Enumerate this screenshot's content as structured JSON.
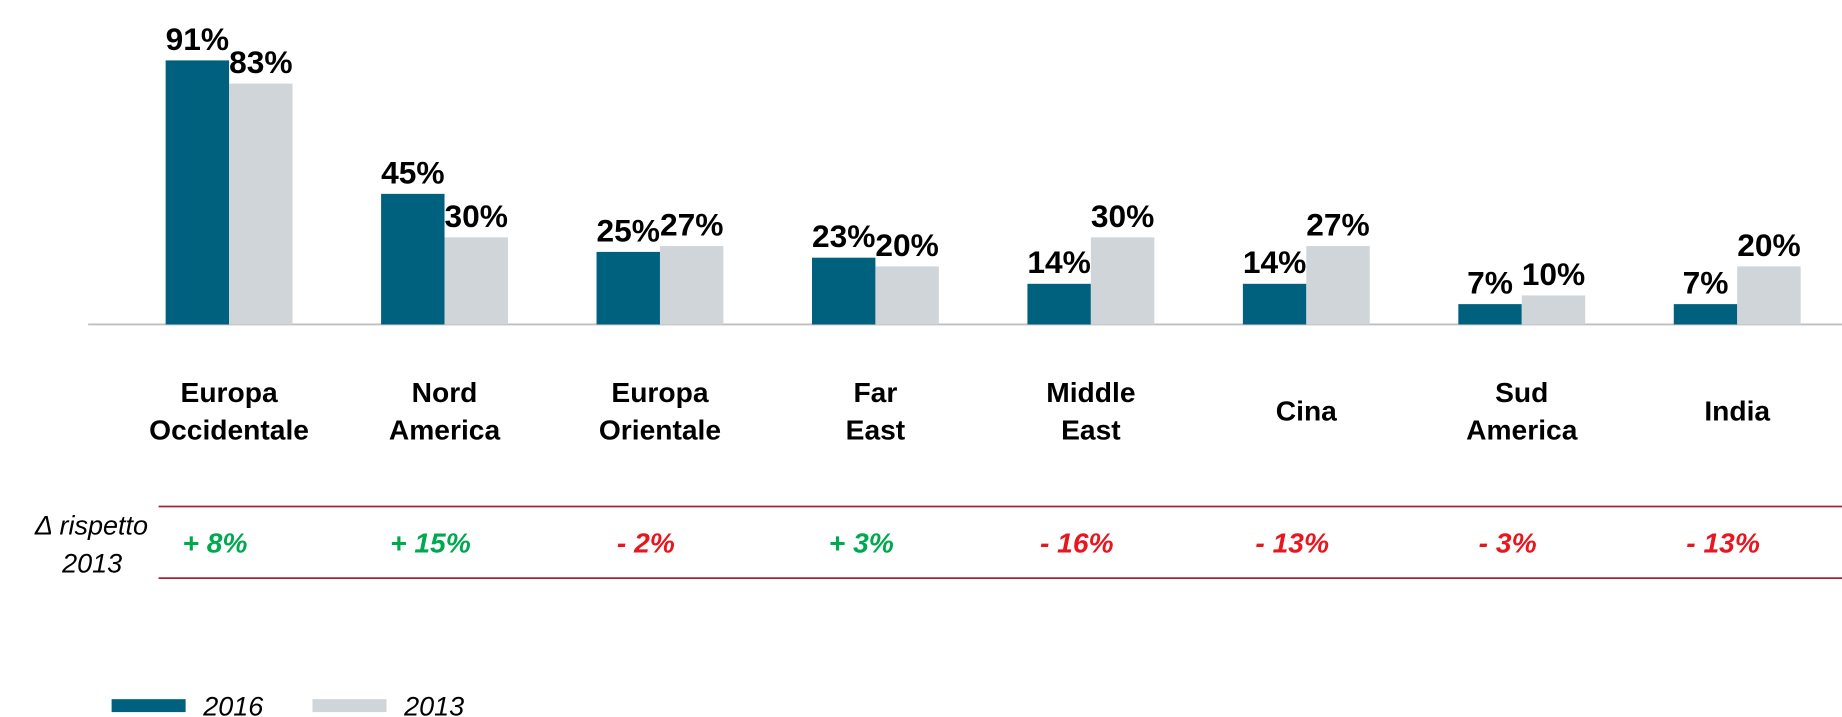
{
  "chart_data": {
    "type": "bar",
    "categories": [
      [
        "Europa",
        "Occidentale"
      ],
      [
        "Nord",
        "America"
      ],
      [
        "Europa",
        "Orientale"
      ],
      [
        "Far",
        "East"
      ],
      [
        "Middle",
        "East"
      ],
      [
        "Cina"
      ],
      [
        "Sud",
        "America"
      ],
      [
        "India"
      ]
    ],
    "series": [
      {
        "name": "2016",
        "color": "#00617f",
        "values": [
          91,
          45,
          25,
          23,
          14,
          14,
          7,
          7
        ],
        "value_labels": [
          "91%",
          "45%",
          "25%",
          "23%",
          "14%",
          "14%",
          "7%",
          "7%"
        ]
      },
      {
        "name": "2013",
        "color": "#d0d5d9",
        "values": [
          83,
          30,
          27,
          20,
          30,
          27,
          10,
          20
        ],
        "value_labels": [
          "83%",
          "30%",
          "27%",
          "20%",
          "30%",
          "27%",
          "10%",
          "20%"
        ]
      }
    ],
    "delta": {
      "label": [
        "Δ rispetto",
        "2013"
      ],
      "values": [
        8,
        15,
        -2,
        3,
        -16,
        -13,
        -3,
        -13
      ],
      "value_labels": [
        "+ 8%",
        "+ 15%",
        "- 2%",
        "+ 3%",
        "- 16%",
        "- 13%",
        "- 3%",
        "- 13%"
      ],
      "positive_color": "#00a94f",
      "negative_color": "#e8161e"
    },
    "legend": "bottom-left"
  }
}
